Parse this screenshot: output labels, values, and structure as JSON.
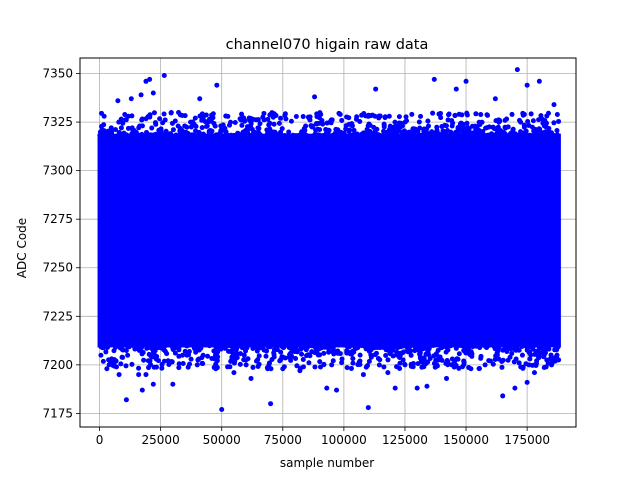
{
  "chart_data": {
    "type": "scatter",
    "title": "channel070 higain raw data",
    "xlabel": "sample number",
    "ylabel": "ADC Code",
    "xlim": [
      -8000,
      195000
    ],
    "ylim": [
      7168,
      7358
    ],
    "x_ticks": [
      0,
      25000,
      50000,
      75000,
      100000,
      125000,
      150000,
      175000
    ],
    "x_tick_labels": [
      "0",
      "25000",
      "50000",
      "75000",
      "100000",
      "125000",
      "150000",
      "175000"
    ],
    "y_ticks": [
      7175,
      7200,
      7225,
      7250,
      7275,
      7300,
      7325,
      7350
    ],
    "y_tick_labels": [
      "7175",
      "7200",
      "7225",
      "7250",
      "7275",
      "7300",
      "7325",
      "7350"
    ],
    "grid": true,
    "marker_color": "#0000ff",
    "series": [
      {
        "dense_band": {
          "x_range": [
            0,
            188000
          ],
          "y_range": [
            7210,
            7318
          ]
        },
        "points": [
          [
            26500,
            7349
          ],
          [
            171000,
            7352
          ],
          [
            19000,
            7346
          ],
          [
            20500,
            7347
          ],
          [
            137000,
            7347
          ],
          [
            150000,
            7346
          ],
          [
            180000,
            7346
          ],
          [
            17000,
            7339
          ],
          [
            146000,
            7342
          ],
          [
            113000,
            7342
          ],
          [
            7500,
            7336
          ],
          [
            13000,
            7337
          ],
          [
            22000,
            7340
          ],
          [
            41000,
            7337
          ],
          [
            48000,
            7344
          ],
          [
            88000,
            7338
          ],
          [
            162000,
            7337
          ],
          [
            175000,
            7344
          ],
          [
            186000,
            7334
          ],
          [
            50000,
            7177
          ],
          [
            110000,
            7178
          ],
          [
            70000,
            7180
          ],
          [
            165000,
            7184
          ],
          [
            11000,
            7182
          ],
          [
            17500,
            7187
          ],
          [
            19000,
            7195
          ],
          [
            16000,
            7195
          ],
          [
            22000,
            7190
          ],
          [
            30000,
            7190
          ],
          [
            97000,
            7187
          ],
          [
            93000,
            7188
          ],
          [
            130000,
            7188
          ],
          [
            134000,
            7189
          ],
          [
            121000,
            7188
          ],
          [
            8000,
            7195
          ],
          [
            3000,
            7198
          ],
          [
            55000,
            7196
          ],
          [
            62000,
            7193
          ],
          [
            75000,
            7198
          ],
          [
            95000,
            7200
          ],
          [
            108000,
            7195
          ],
          [
            142000,
            7193
          ],
          [
            170000,
            7188
          ],
          [
            175000,
            7191
          ],
          [
            178000,
            7196
          ],
          [
            185000,
            7200
          ],
          [
            152000,
            7198
          ],
          [
            60000,
            7200
          ],
          [
            40000,
            7200
          ],
          [
            82000,
            7197
          ],
          [
            118000,
            7196
          ],
          [
            125000,
            7200
          ],
          [
            160000,
            7202
          ],
          [
            182000,
            7205
          ]
        ]
      }
    ]
  }
}
